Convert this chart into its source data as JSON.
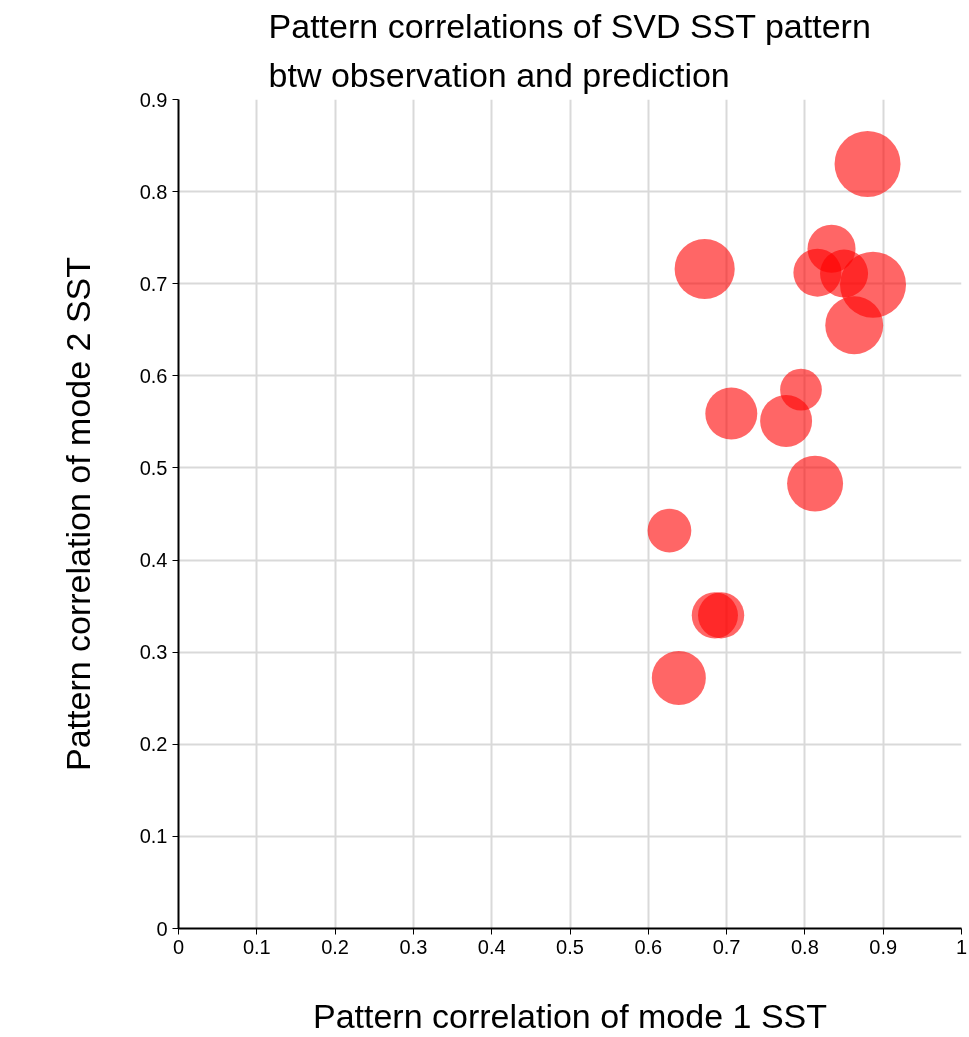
{
  "chart_data": {
    "type": "bubble",
    "title": "Pattern correlations of SVD SST pattern\nbtw observation and prediction",
    "xlabel": "Pattern correlation of mode 1 SST",
    "ylabel": "Pattern correlation of mode 2 SST",
    "x": [
      0.88,
      0.672,
      0.834,
      0.816,
      0.85,
      0.887,
      0.863,
      0.795,
      0.706,
      0.776,
      0.813,
      0.627,
      0.685,
      0.693,
      0.639
    ],
    "series": [
      {
        "color": "#ff0000",
        "values": [
          0.83,
          0.716,
          0.738,
          0.712,
          0.711,
          0.699,
          0.655,
          0.585,
          0.559,
          0.551,
          0.483,
          0.432,
          0.34,
          0.34,
          0.272
        ],
        "sizes": [
          1,
          0.83,
          0.53,
          0.53,
          0.53,
          1,
          0.77,
          0.4,
          0.62,
          0.62,
          0.72,
          0.44,
          0.49,
          0.49,
          0.67
        ]
      }
    ],
    "xlim": [
      0,
      1
    ],
    "ylim": [
      0,
      0.9
    ],
    "xticks": [
      0,
      0.1,
      0.2,
      0.3,
      0.4,
      0.5,
      0.6,
      0.7,
      0.8,
      0.9,
      1
    ],
    "yticks": [
      0,
      0.1,
      0.2,
      0.3,
      0.4,
      0.5,
      0.6,
      0.7,
      0.8,
      0.9
    ],
    "grid": true
  }
}
